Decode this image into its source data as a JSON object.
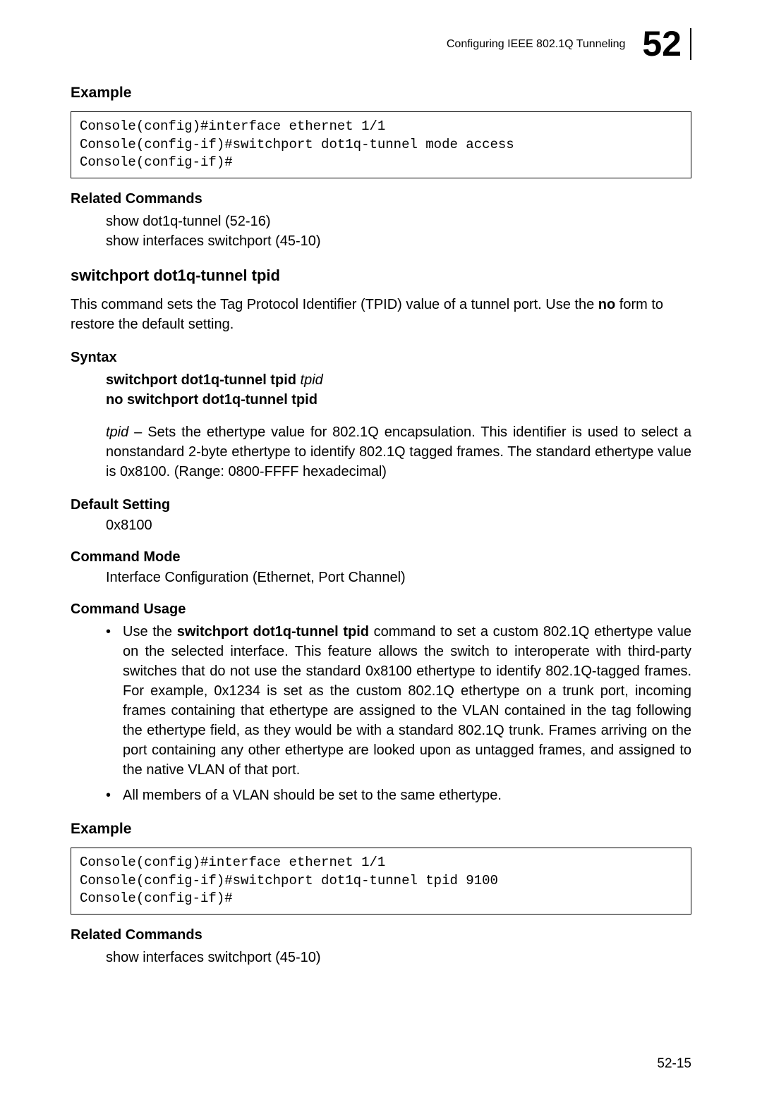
{
  "header": {
    "title": "Configuring IEEE 802.1Q Tunneling",
    "chapter": "52"
  },
  "section1": {
    "example_label": "Example",
    "code": "Console(config)#interface ethernet 1/1\nConsole(config-if)#switchport dot1q-tunnel mode access\nConsole(config-if)#",
    "related_label": "Related Commands",
    "related_items": "show dot1q-tunnel  (52-16)\nshow interfaces switchport (45-10)"
  },
  "cmd": {
    "name": "switchport dot1q-tunnel tpid",
    "desc_pre": "This command sets the Tag Protocol Identifier (TPID) value of a tunnel port. Use the ",
    "desc_bold": "no",
    "desc_post": " form to restore the default setting.",
    "syntax_label": "Syntax",
    "syntax_line1_bold": "switchport dot1q-tunnel tpid",
    "syntax_line1_italic": " tpid",
    "syntax_line2": "no switchport dot1q-tunnel tpid",
    "param_name": "tpid",
    "param_desc": " – Sets the ethertype value for 802.1Q encapsulation. This identifier is used to select a nonstandard 2-byte ethertype to identify 802.1Q tagged frames. The standard ethertype value is 0x8100. (Range: 0800-FFFF hexadecimal)",
    "default_label": "Default Setting",
    "default_value": "0x8100",
    "mode_label": "Command Mode",
    "mode_value": "Interface Configuration (Ethernet, Port Channel)",
    "usage_label": "Command Usage",
    "usage_b1_pre": "Use the ",
    "usage_b1_bold": "switchport dot1q-tunnel tpid",
    "usage_b1_post": " command to set a custom 802.1Q ethertype value on the selected interface. This feature allows the switch to interoperate with third-party switches that do not use the standard 0x8100 ethertype to identify 802.1Q-tagged frames. For example, 0x1234 is set as the custom 802.1Q ethertype on a trunk port, incoming frames containing that ethertype are assigned to the VLAN contained in the tag following the ethertype field, as they would be with a standard 802.1Q trunk. Frames arriving on the port containing any other ethertype are looked upon as untagged frames, and assigned to the native VLAN of that port.",
    "usage_b2": "All members of a VLAN should be set to the same ethertype.",
    "example2_label": "Example",
    "code2": "Console(config)#interface ethernet 1/1\nConsole(config-if)#switchport dot1q-tunnel tpid 9100\nConsole(config-if)#",
    "related2_label": "Related Commands",
    "related2_items": "show interfaces switchport (45-10)"
  },
  "page_number": "52-15"
}
